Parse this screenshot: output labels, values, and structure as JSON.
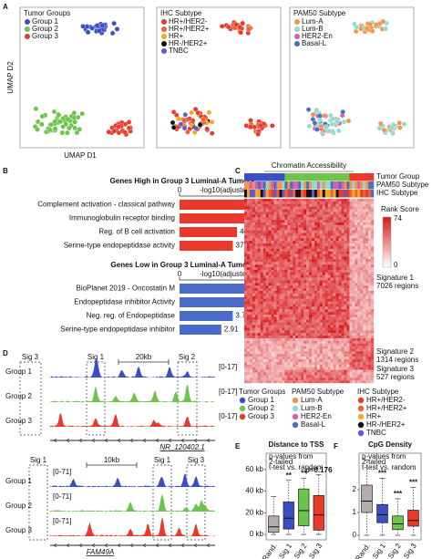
{
  "panel_labels": [
    "A",
    "B",
    "C",
    "D",
    "E",
    "F"
  ],
  "umap": {
    "y_label": "UMAP D2",
    "x_label": "UMAP D1",
    "plots": [
      {
        "title": "Tumor Groups",
        "items": [
          {
            "name": "Group 1",
            "color": "#3b4fc4"
          },
          {
            "name": "Group 2",
            "color": "#6dc44a"
          },
          {
            "name": "Group 3",
            "color": "#e8392c"
          }
        ]
      },
      {
        "title": "IHC Subtype",
        "items": [
          {
            "name": "HR+/HER2-",
            "color": "#e8392c"
          },
          {
            "name": "HR+/HER2+",
            "color": "#f0622a"
          },
          {
            "name": "HR+",
            "color": "#f7a823"
          },
          {
            "name": "HR-/HER2+",
            "color": "#111111"
          },
          {
            "name": "TNBC",
            "color": "#5b5bd6"
          }
        ]
      },
      {
        "title": "PAM50 Subtype",
        "items": [
          {
            "name": "Lum-A",
            "color": "#f3944a"
          },
          {
            "name": "Lum-B",
            "color": "#8fdccf"
          },
          {
            "name": "HER2-En",
            "color": "#e05ab4"
          },
          {
            "name": "Basal-L",
            "color": "#4a6fc0"
          }
        ]
      }
    ]
  },
  "chart_data": [
    {
      "type": "bar",
      "orientation": "horizontal",
      "title": "Genes High in Group 3 Luminal-A Tumors",
      "xlabel": "-log10(adjusted p value)",
      "categories": [
        "Complement activation - classical pathway",
        "Immunoglobulin receptor binding",
        "Reg. of B cell activation",
        "Serine-type endopeptidase activity"
      ],
      "values": [
        75.44,
        49.01,
        40.05,
        37.17
      ],
      "color": "#e8392c",
      "xlim": [
        0,
        80
      ],
      "xticks": [
        0,
        75
      ]
    },
    {
      "type": "bar",
      "orientation": "horizontal",
      "title": "Genes Low in Group 3 Luminal-A Tumors",
      "xlabel": "-log10(adjusted p value)",
      "categories": [
        "BioPlanet 2019 - Oncostatin M",
        "Endopeptidase inhibitor Activity",
        "Neg. reg. of Endopeptidase",
        "Serine-type endopeptidase inhibitor"
      ],
      "values": [
        7.8,
        5.09,
        3.71,
        2.91
      ],
      "value_labels": [
        "7.80",
        "5.09",
        "3.71",
        "2.91"
      ],
      "color": "#4a6cc8",
      "xlim": [
        0,
        8
      ],
      "xticks": [
        0,
        7
      ]
    },
    {
      "type": "box",
      "title": "Distance to TSS",
      "note": [
        "p-values from",
        "2-tailed",
        "t-test vs. random"
      ],
      "categories": [
        "Rand.",
        "Sig 1",
        "Sig 2",
        "Sig 3"
      ],
      "colors": [
        "#b5adad",
        "#3b4fc4",
        "#6dc44a",
        "#e8392c"
      ],
      "whislo": [
        0,
        0,
        0,
        0
      ],
      "q1": [
        2,
        5,
        8,
        4
      ],
      "med": [
        7,
        15,
        22,
        18
      ],
      "q3": [
        17,
        30,
        42,
        36
      ],
      "whishi": [
        35,
        50,
        52,
        55
      ],
      "annotations": [
        null,
        "**",
        "**",
        "p=0.176"
      ],
      "ylim": [
        -5,
        75
      ],
      "yticks": [
        {
          "value": 0,
          "label": "0 kb"
        },
        {
          "value": 20,
          "label": "20 kb"
        },
        {
          "value": 40,
          "label": "40 kb"
        },
        {
          "value": 60,
          "label": "60 kb"
        }
      ]
    },
    {
      "type": "box",
      "title": "CpG Density",
      "note": [
        "p-values from",
        "2-tailed",
        "t-test vs. random"
      ],
      "categories": [
        "Rand.",
        "Sig 1",
        "Sig 2",
        "Sig 3"
      ],
      "colors": [
        "#b5adad",
        "#3b4fc4",
        "#6dc44a",
        "#e8392c"
      ],
      "whislo": [
        0,
        0,
        0,
        0
      ],
      "q1": [
        1.0,
        0.55,
        0.25,
        0.4
      ],
      "med": [
        1.5,
        0.9,
        0.5,
        0.65
      ],
      "q3": [
        2.2,
        1.35,
        0.85,
        1.1
      ],
      "whishi": [
        3.3,
        2.5,
        1.6,
        2.1
      ],
      "annotations": [
        null,
        "***",
        "***",
        "***"
      ],
      "ylim": [
        -0.2,
        3.6
      ],
      "yticks": [
        0,
        1,
        2
      ]
    }
  ],
  "heatmap": {
    "title": "Chromatin Accessibility",
    "tracks": [
      "Tumor Group",
      "PAM50 Subtype",
      "IHC Subtype"
    ],
    "colorbar": {
      "title": "Rank Score",
      "ticks": [
        74,
        0
      ]
    },
    "signatures": [
      {
        "name": "Signature 1",
        "regions": "7026 regions"
      },
      {
        "name": "Signature 2",
        "regions": "1314 regions"
      },
      {
        "name": "Signature 3",
        "regions": "527 regions"
      }
    ],
    "legends": [
      {
        "title": "Tumor Groups",
        "items": [
          {
            "name": "Group 1",
            "color": "#3b4fc4"
          },
          {
            "name": "Group 2",
            "color": "#6dc44a"
          },
          {
            "name": "Group 3",
            "color": "#e8392c"
          }
        ]
      },
      {
        "title": "PAM50 Subtype",
        "items": [
          {
            "name": "Lum-A",
            "color": "#f3944a"
          },
          {
            "name": "Lum-B",
            "color": "#8fdccf"
          },
          {
            "name": "HER2-En",
            "color": "#e05ab4"
          },
          {
            "name": "Basal-L",
            "color": "#4a6fc0"
          }
        ]
      },
      {
        "title": "IHC Subtype",
        "items": [
          {
            "name": "HR+/HER2-",
            "color": "#e8392c"
          },
          {
            "name": "HR+/HER2+",
            "color": "#f0622a"
          },
          {
            "name": "HR+",
            "color": "#f7a823"
          },
          {
            "name": "HR-/HER2+",
            "color": "#111111"
          },
          {
            "name": "TNBC",
            "color": "#5b5bd6"
          }
        ]
      }
    ]
  },
  "tracks": [
    {
      "sig_labels": [
        "Sig 3",
        "Sig 1",
        "Sig 2"
      ],
      "scale": "20kb",
      "range": "[0-17]",
      "groups": [
        "Group 1",
        "Group 2",
        "Group 3"
      ],
      "colors": [
        "#3b4fc4",
        "#6dc44a",
        "#e8392c"
      ],
      "gene": "NR_120402.1"
    },
    {
      "sig_labels": [
        "Sig 1",
        "Sig 1",
        "Sig 3"
      ],
      "scale": "10kb",
      "range": "[0-71]",
      "groups": [
        "Group 1",
        "Group 2",
        "Group 3"
      ],
      "colors": [
        "#3b4fc4",
        "#6dc44a",
        "#e8392c"
      ],
      "gene": "FAM49A"
    }
  ]
}
